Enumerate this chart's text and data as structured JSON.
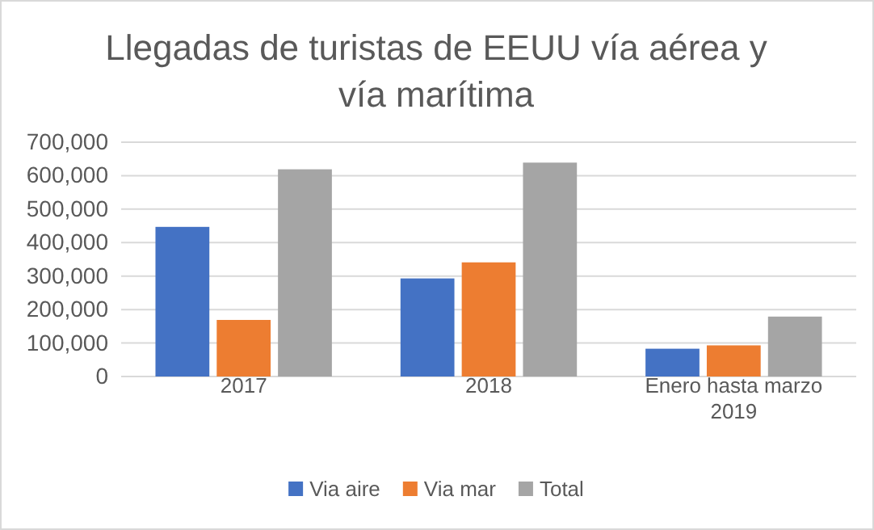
{
  "chart_data": {
    "type": "bar",
    "title": "Llegadas de turistas de EEUU vía aérea y vía marítima",
    "categories": [
      "2017",
      "2018",
      "Enero hasta marzo 2019"
    ],
    "series": [
      {
        "name": "Via aire",
        "color": "#4472c4",
        "values": [
          447000,
          293000,
          83000
        ]
      },
      {
        "name": "Via mar",
        "color": "#ed7d31",
        "values": [
          169000,
          341000,
          93000
        ]
      },
      {
        "name": "Total",
        "color": "#a5a5a5",
        "values": [
          619000,
          639000,
          179000
        ]
      }
    ],
    "ylim": [
      0,
      700000
    ],
    "yticks": [
      {
        "value": 0,
        "label": "0"
      },
      {
        "value": 100000,
        "label": "100,000"
      },
      {
        "value": 200000,
        "label": "200,000"
      },
      {
        "value": 300000,
        "label": "300,000"
      },
      {
        "value": 400000,
        "label": "400,000"
      },
      {
        "value": 500000,
        "label": "500,000"
      },
      {
        "value": 600000,
        "label": "600,000"
      },
      {
        "value": 700000,
        "label": "700,000"
      }
    ],
    "grid": "y",
    "legend": "bottom"
  }
}
